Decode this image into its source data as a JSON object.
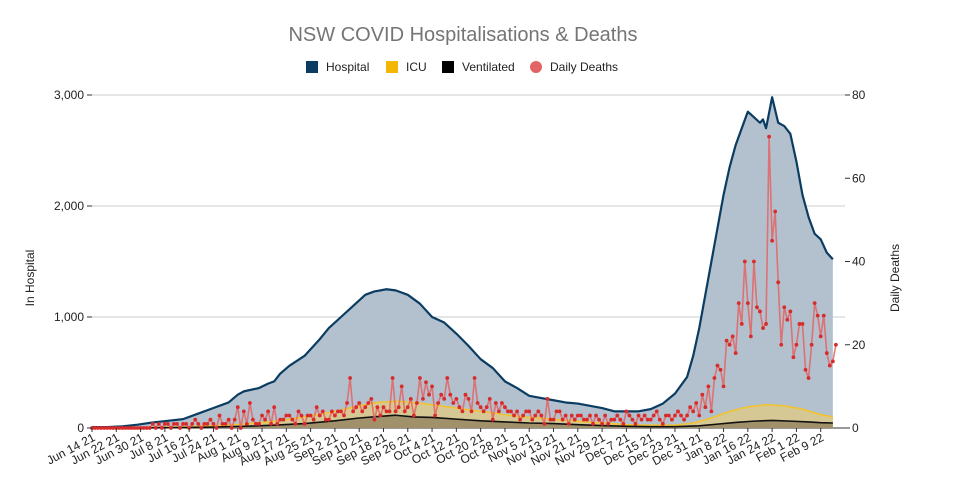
{
  "chart_data": {
    "type": "area",
    "title": "NSW COVID Hospitalisations & Deaths",
    "ylabel_left": "In Hospital",
    "ylabel_right": "Daily Deaths",
    "ylim_left": [
      0,
      3000
    ],
    "ylim_right": [
      0,
      80
    ],
    "yticks_left": [
      0,
      1000,
      2000,
      3000
    ],
    "yticks_left_labels": [
      "0",
      "1,000",
      "2,000",
      "3,000"
    ],
    "yticks_right": [
      0,
      20,
      40,
      60,
      80
    ],
    "yticks_right_labels": [
      "0",
      "20",
      "40",
      "60",
      "80"
    ],
    "x_range_days": [
      0,
      248
    ],
    "x_ticks": [
      {
        "day": 0,
        "label": "Jun 14 21"
      },
      {
        "day": 8,
        "label": "Jun 22 21"
      },
      {
        "day": 16,
        "label": "Jun 30 21"
      },
      {
        "day": 24,
        "label": "Jul 8 21"
      },
      {
        "day": 32,
        "label": "Jul 16 21"
      },
      {
        "day": 40,
        "label": "Jul 24 21"
      },
      {
        "day": 48,
        "label": "Aug 1 21"
      },
      {
        "day": 56,
        "label": "Aug 9 21"
      },
      {
        "day": 64,
        "label": "Aug 17 21"
      },
      {
        "day": 72,
        "label": "Aug 25 21"
      },
      {
        "day": 80,
        "label": "Sep 2 21"
      },
      {
        "day": 88,
        "label": "Sep 10 21"
      },
      {
        "day": 96,
        "label": "Sep 18 21"
      },
      {
        "day": 104,
        "label": "Sep 26 21"
      },
      {
        "day": 112,
        "label": "Oct 4 21"
      },
      {
        "day": 120,
        "label": "Oct 12 21"
      },
      {
        "day": 128,
        "label": "Oct 20 21"
      },
      {
        "day": 136,
        "label": "Oct 28 21"
      },
      {
        "day": 144,
        "label": "Nov 5 21"
      },
      {
        "day": 152,
        "label": "Nov 13 21"
      },
      {
        "day": 160,
        "label": "Nov 21 21"
      },
      {
        "day": 168,
        "label": "Nov 29 21"
      },
      {
        "day": 176,
        "label": "Dec 7 21"
      },
      {
        "day": 184,
        "label": "Dec 15 21"
      },
      {
        "day": 192,
        "label": "Dec 23 21"
      },
      {
        "day": 200,
        "label": "Dec 31 21"
      },
      {
        "day": 208,
        "label": "Jan 8 22"
      },
      {
        "day": 216,
        "label": "Jan 16 22"
      },
      {
        "day": 224,
        "label": "Jan 24 22"
      },
      {
        "day": 232,
        "label": "Feb 1 22"
      },
      {
        "day": 240,
        "label": "Feb 9 22"
      }
    ],
    "legend": [
      {
        "name": "Hospital",
        "color": "#0b3c61",
        "marker": "square"
      },
      {
        "name": "ICU",
        "color": "#f2b705",
        "marker": "square"
      },
      {
        "name": "Ventilated",
        "color": "#000000",
        "marker": "square"
      },
      {
        "name": "Daily Deaths",
        "color": "#e36464",
        "marker": "circle"
      }
    ],
    "colors": {
      "hospital_fill": "#b3c1ce",
      "hospital_line": "#0b3c61",
      "icu_fill": "#dcc98a",
      "icu_line": "#f2c230",
      "vent_fill": "#9b8b66",
      "vent_line": "#111111",
      "deaths_line": "#e36464",
      "deaths_marker": "#d92b2b",
      "grid": "#cccccc"
    },
    "series": [
      {
        "name": "Hospital",
        "axis": "left",
        "points": [
          [
            0,
            8
          ],
          [
            5,
            8
          ],
          [
            10,
            15
          ],
          [
            15,
            30
          ],
          [
            20,
            50
          ],
          [
            25,
            65
          ],
          [
            30,
            80
          ],
          [
            35,
            130
          ],
          [
            40,
            180
          ],
          [
            45,
            230
          ],
          [
            48,
            300
          ],
          [
            50,
            330
          ],
          [
            55,
            360
          ],
          [
            58,
            400
          ],
          [
            60,
            420
          ],
          [
            62,
            490
          ],
          [
            65,
            560
          ],
          [
            70,
            650
          ],
          [
            75,
            800
          ],
          [
            78,
            900
          ],
          [
            82,
            1000
          ],
          [
            86,
            1100
          ],
          [
            90,
            1200
          ],
          [
            93,
            1230
          ],
          [
            97,
            1250
          ],
          [
            100,
            1240
          ],
          [
            104,
            1200
          ],
          [
            108,
            1120
          ],
          [
            112,
            1000
          ],
          [
            116,
            950
          ],
          [
            120,
            850
          ],
          [
            124,
            740
          ],
          [
            128,
            620
          ],
          [
            132,
            540
          ],
          [
            136,
            420
          ],
          [
            140,
            360
          ],
          [
            144,
            290
          ],
          [
            148,
            270
          ],
          [
            152,
            250
          ],
          [
            156,
            230
          ],
          [
            160,
            220
          ],
          [
            164,
            200
          ],
          [
            168,
            180
          ],
          [
            172,
            150
          ],
          [
            176,
            150
          ],
          [
            180,
            150
          ],
          [
            184,
            170
          ],
          [
            188,
            220
          ],
          [
            192,
            310
          ],
          [
            196,
            460
          ],
          [
            198,
            650
          ],
          [
            200,
            900
          ],
          [
            202,
            1200
          ],
          [
            204,
            1500
          ],
          [
            206,
            1800
          ],
          [
            208,
            2100
          ],
          [
            210,
            2350
          ],
          [
            212,
            2550
          ],
          [
            214,
            2700
          ],
          [
            216,
            2850
          ],
          [
            218,
            2800
          ],
          [
            220,
            2750
          ],
          [
            221,
            2780
          ],
          [
            222,
            2700
          ],
          [
            224,
            2980
          ],
          [
            226,
            2750
          ],
          [
            228,
            2720
          ],
          [
            230,
            2650
          ],
          [
            232,
            2400
          ],
          [
            234,
            2100
          ],
          [
            236,
            1900
          ],
          [
            238,
            1750
          ],
          [
            240,
            1700
          ],
          [
            242,
            1580
          ],
          [
            244,
            1520
          ]
        ]
      },
      {
        "name": "ICU",
        "axis": "left",
        "points": [
          [
            0,
            0
          ],
          [
            20,
            5
          ],
          [
            30,
            10
          ],
          [
            40,
            20
          ],
          [
            50,
            35
          ],
          [
            60,
            60
          ],
          [
            70,
            100
          ],
          [
            80,
            150
          ],
          [
            88,
            200
          ],
          [
            94,
            230
          ],
          [
            100,
            240
          ],
          [
            106,
            230
          ],
          [
            112,
            210
          ],
          [
            120,
            180
          ],
          [
            128,
            150
          ],
          [
            136,
            120
          ],
          [
            144,
            95
          ],
          [
            152,
            80
          ],
          [
            160,
            60
          ],
          [
            168,
            45
          ],
          [
            176,
            30
          ],
          [
            184,
            25
          ],
          [
            192,
            25
          ],
          [
            198,
            45
          ],
          [
            204,
            90
          ],
          [
            210,
            150
          ],
          [
            216,
            190
          ],
          [
            222,
            210
          ],
          [
            228,
            200
          ],
          [
            234,
            170
          ],
          [
            240,
            120
          ],
          [
            244,
            100
          ]
        ]
      },
      {
        "name": "Ventilated",
        "axis": "left",
        "points": [
          [
            0,
            0
          ],
          [
            20,
            2
          ],
          [
            30,
            4
          ],
          [
            40,
            8
          ],
          [
            50,
            15
          ],
          [
            60,
            25
          ],
          [
            70,
            40
          ],
          [
            80,
            65
          ],
          [
            88,
            90
          ],
          [
            95,
            105
          ],
          [
            100,
            115
          ],
          [
            106,
            100
          ],
          [
            112,
            95
          ],
          [
            120,
            80
          ],
          [
            128,
            65
          ],
          [
            136,
            55
          ],
          [
            144,
            45
          ],
          [
            152,
            40
          ],
          [
            160,
            30
          ],
          [
            168,
            22
          ],
          [
            176,
            15
          ],
          [
            184,
            12
          ],
          [
            192,
            12
          ],
          [
            200,
            20
          ],
          [
            206,
            35
          ],
          [
            212,
            50
          ],
          [
            218,
            62
          ],
          [
            224,
            68
          ],
          [
            230,
            62
          ],
          [
            236,
            55
          ],
          [
            240,
            48
          ],
          [
            244,
            45
          ]
        ]
      },
      {
        "name": "Daily Deaths",
        "axis": "right",
        "values": [
          0,
          0,
          0,
          0,
          0,
          0,
          0,
          0,
          0,
          0,
          0,
          0,
          0,
          0,
          0,
          0,
          0,
          0,
          0,
          0,
          1,
          0,
          1,
          0,
          1,
          1,
          0,
          1,
          1,
          0,
          1,
          1,
          0,
          1,
          2,
          1,
          0,
          1,
          1,
          2,
          1,
          0,
          3,
          1,
          1,
          2,
          0,
          2,
          5,
          0,
          4,
          1,
          6,
          2,
          1,
          1,
          3,
          2,
          4,
          1,
          5,
          1,
          2,
          2,
          3,
          3,
          2,
          1,
          4,
          3,
          1,
          3,
          3,
          2,
          5,
          3,
          4,
          2,
          2,
          4,
          3,
          4,
          4,
          3,
          6,
          12,
          4,
          5,
          6,
          4,
          5,
          6,
          7,
          2,
          5,
          3,
          5,
          4,
          4,
          12,
          4,
          5,
          10,
          4,
          5,
          7,
          3,
          6,
          12,
          7,
          11,
          8,
          10,
          3,
          6,
          8,
          7,
          12,
          8,
          6,
          7,
          5,
          4,
          8,
          7,
          4,
          12,
          6,
          5,
          4,
          5,
          7,
          2,
          6,
          4,
          6,
          5,
          4,
          4,
          3,
          4,
          2,
          3,
          4,
          4,
          2,
          3,
          4,
          3,
          1,
          7,
          2,
          2,
          4,
          4,
          2,
          3,
          1,
          3,
          2,
          3,
          3,
          2,
          2,
          3,
          1,
          3,
          2,
          1,
          3,
          1,
          2,
          2,
          3,
          2,
          1,
          4,
          3,
          2,
          1,
          3,
          2,
          3,
          2,
          2,
          3,
          4,
          2,
          1,
          3,
          3,
          2,
          3,
          4,
          3,
          2,
          3,
          5,
          4,
          6,
          3,
          8,
          5,
          10,
          4,
          12,
          15,
          14,
          10,
          21,
          20,
          22,
          18,
          30,
          25,
          40,
          30,
          22,
          40,
          29,
          28,
          24,
          25,
          70,
          45,
          52,
          35,
          20,
          29,
          26,
          28,
          17,
          20,
          25,
          25,
          14,
          12,
          20,
          30,
          27,
          22,
          27,
          18,
          15,
          16,
          20
        ]
      }
    ]
  }
}
